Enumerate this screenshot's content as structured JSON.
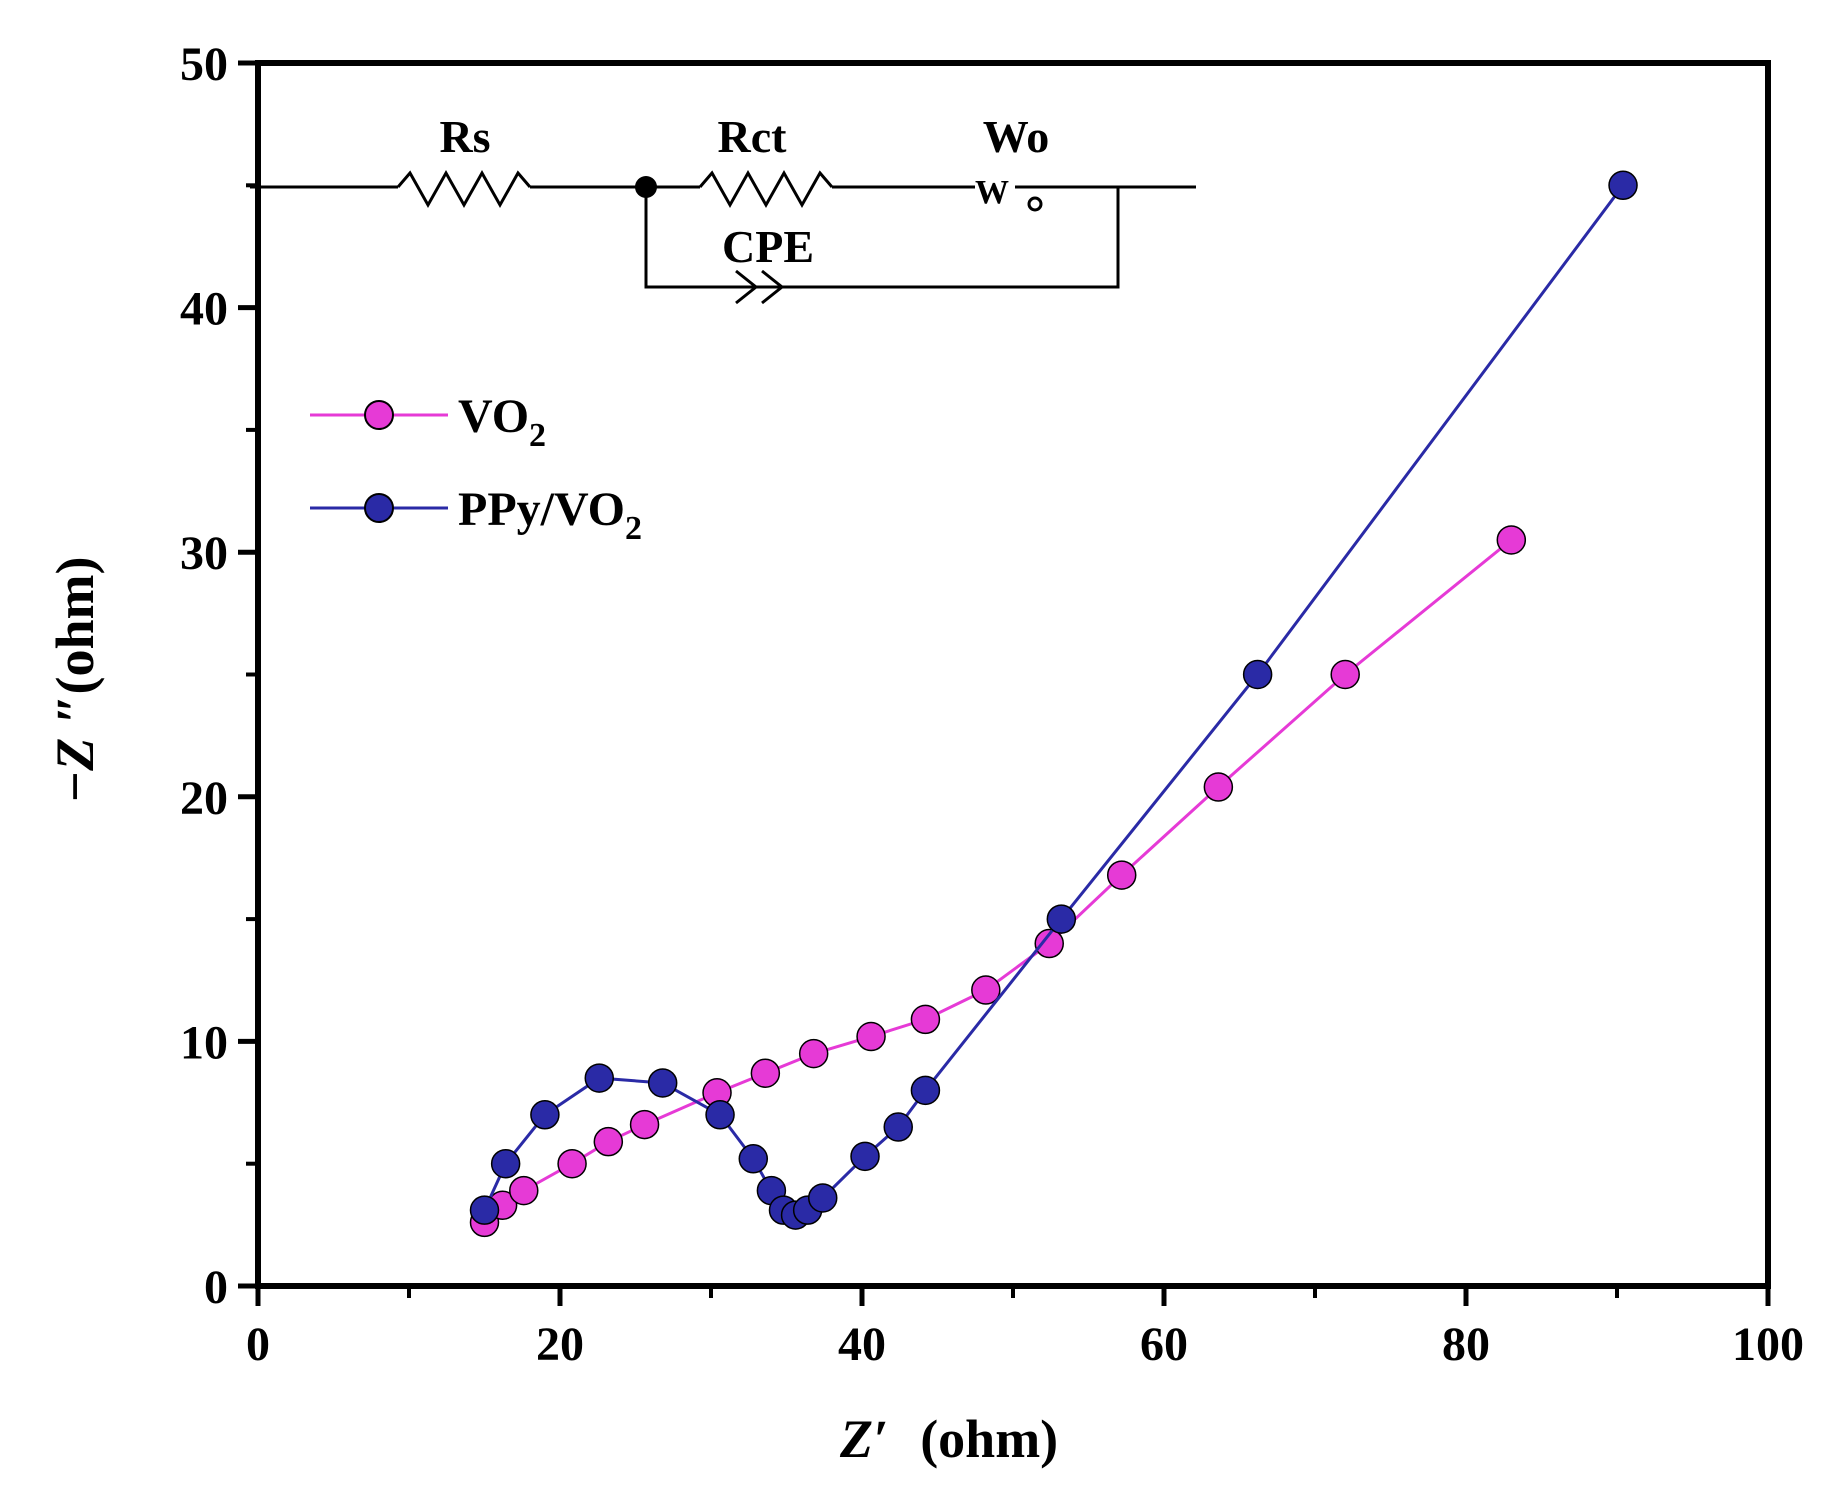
{
  "chart_data": {
    "type": "scatter",
    "xlabel_main": "Z′",
    "xlabel_unit": "(ohm)",
    "ylabel_main": "−Z ″",
    "ylabel_unit": "(ohm)",
    "xlim": [
      0,
      100
    ],
    "ylim": [
      0,
      50
    ],
    "xticks": [
      0,
      20,
      40,
      60,
      80,
      100
    ],
    "yticks": [
      0,
      10,
      20,
      30,
      40,
      50
    ],
    "legend_position": "upper-left",
    "grid": false,
    "series": [
      {
        "name": "VO2",
        "name_main": "VO",
        "name_sub": "2",
        "color": "#e63ad6",
        "points": [
          [
            15.0,
            2.6
          ],
          [
            16.2,
            3.3
          ],
          [
            17.6,
            3.9
          ],
          [
            20.8,
            5.0
          ],
          [
            23.2,
            5.9
          ],
          [
            25.6,
            6.6
          ],
          [
            30.4,
            7.9
          ],
          [
            33.6,
            8.7
          ],
          [
            36.8,
            9.5
          ],
          [
            40.6,
            10.2
          ],
          [
            44.2,
            10.9
          ],
          [
            48.2,
            12.1
          ],
          [
            52.4,
            14.0
          ],
          [
            57.2,
            16.8
          ],
          [
            63.6,
            20.4
          ],
          [
            72.0,
            25.0
          ],
          [
            83.0,
            30.5
          ]
        ]
      },
      {
        "name": "PPy/VO2",
        "name_main": "PPy/VO",
        "name_sub": "2",
        "color": "#2a2aa6",
        "points": [
          [
            15.0,
            3.1
          ],
          [
            16.4,
            5.0
          ],
          [
            19.0,
            7.0
          ],
          [
            22.6,
            8.5
          ],
          [
            26.8,
            8.3
          ],
          [
            30.6,
            7.0
          ],
          [
            32.8,
            5.2
          ],
          [
            34.0,
            3.9
          ],
          [
            34.8,
            3.1
          ],
          [
            35.6,
            2.9
          ],
          [
            36.4,
            3.1
          ],
          [
            37.4,
            3.6
          ],
          [
            40.2,
            5.3
          ],
          [
            42.4,
            6.5
          ],
          [
            44.2,
            8.0
          ],
          [
            53.2,
            15.0
          ],
          [
            66.2,
            25.0
          ],
          [
            90.4,
            45.0
          ]
        ]
      }
    ],
    "circuit": {
      "labels": [
        "Rs",
        "Rct",
        "Wo",
        "CPE"
      ],
      "wo_symbol": "W"
    }
  }
}
